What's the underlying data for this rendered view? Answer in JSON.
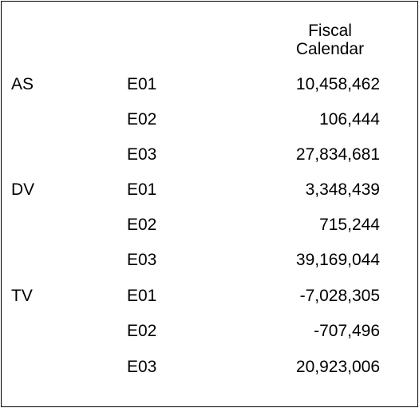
{
  "table": {
    "column_header": "Fiscal\nCalendar",
    "rows": [
      {
        "group": "AS",
        "code": "E01",
        "value": "10,458,462"
      },
      {
        "group": "",
        "code": "E02",
        "value": "106,444"
      },
      {
        "group": "",
        "code": "E03",
        "value": "27,834,681"
      },
      {
        "group": "DV",
        "code": "E01",
        "value": "3,348,439"
      },
      {
        "group": "",
        "code": "E02",
        "value": "715,244"
      },
      {
        "group": "",
        "code": "E03",
        "value": "39,169,044"
      },
      {
        "group": "TV",
        "code": "E01",
        "value": "-7,028,305"
      },
      {
        "group": "",
        "code": "E02",
        "value": "-707,496"
      },
      {
        "group": "",
        "code": "E03",
        "value": "20,923,006"
      }
    ]
  }
}
